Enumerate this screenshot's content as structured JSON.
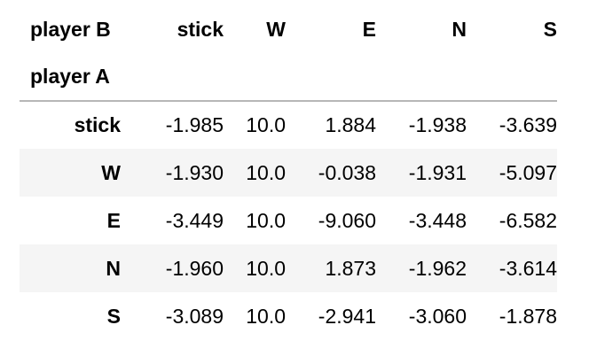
{
  "table": {
    "columns_name": "player B",
    "index_name": "player A",
    "columns": [
      "stick",
      "W",
      "E",
      "N",
      "S"
    ],
    "rows": [
      {
        "label": "stick",
        "values": [
          "-1.985",
          "10.0",
          "1.884",
          "-1.938",
          "-3.639"
        ]
      },
      {
        "label": "W",
        "values": [
          "-1.930",
          "10.0",
          "-0.038",
          "-1.931",
          "-5.097"
        ]
      },
      {
        "label": "E",
        "values": [
          "-3.449",
          "10.0",
          "-9.060",
          "-3.448",
          "-6.582"
        ]
      },
      {
        "label": "N",
        "values": [
          "-1.960",
          "10.0",
          "1.873",
          "-1.962",
          "-3.614"
        ]
      },
      {
        "label": "S",
        "values": [
          "-3.089",
          "10.0",
          "-2.941",
          "-3.060",
          "-1.878"
        ]
      }
    ]
  }
}
